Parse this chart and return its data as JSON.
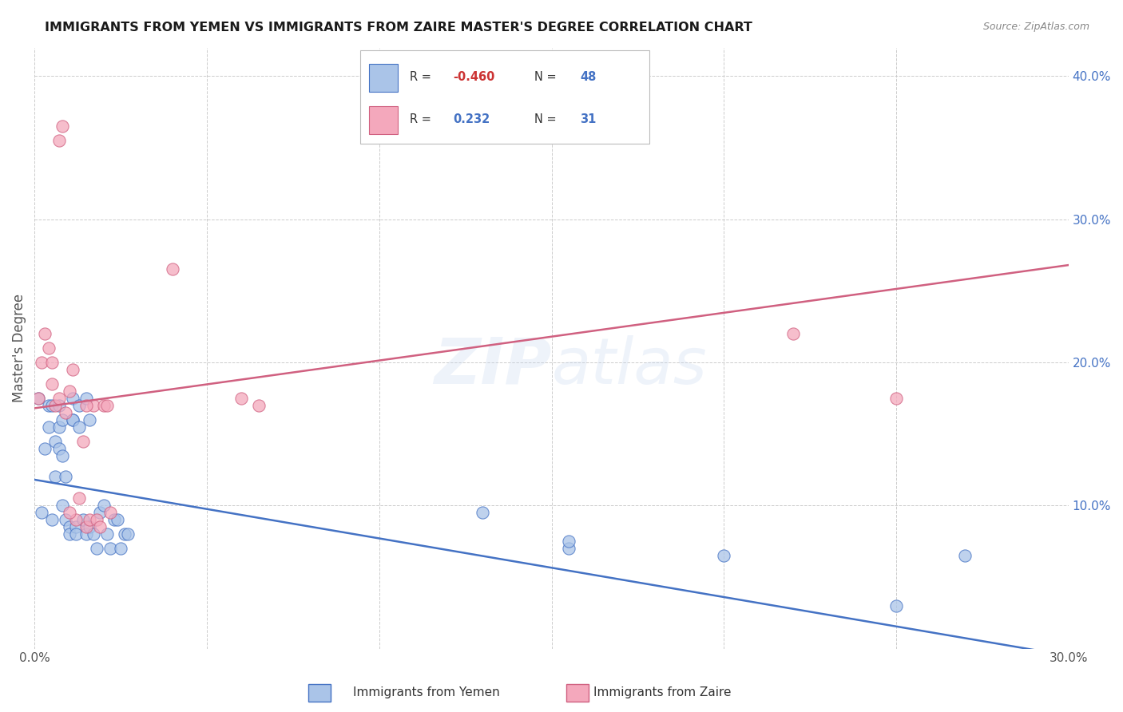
{
  "title": "IMMIGRANTS FROM YEMEN VS IMMIGRANTS FROM ZAIRE MASTER'S DEGREE CORRELATION CHART",
  "source": "Source: ZipAtlas.com",
  "ylabel": "Master's Degree",
  "x_min": 0.0,
  "x_max": 0.3,
  "y_min": 0.0,
  "y_max": 0.42,
  "color_yemen": "#aac4e8",
  "color_zaire": "#f4a8bc",
  "color_line_yemen": "#4472c4",
  "color_line_zaire": "#d06080",
  "watermark": "ZIPatlas",
  "yemen_x": [
    0.001,
    0.002,
    0.003,
    0.004,
    0.004,
    0.005,
    0.005,
    0.006,
    0.006,
    0.007,
    0.007,
    0.007,
    0.008,
    0.008,
    0.008,
    0.009,
    0.009,
    0.01,
    0.01,
    0.011,
    0.011,
    0.011,
    0.012,
    0.012,
    0.013,
    0.013,
    0.014,
    0.015,
    0.015,
    0.016,
    0.016,
    0.017,
    0.018,
    0.019,
    0.02,
    0.021,
    0.022,
    0.023,
    0.024,
    0.025,
    0.026,
    0.027,
    0.13,
    0.155,
    0.155,
    0.2,
    0.25,
    0.27
  ],
  "yemen_y": [
    0.175,
    0.095,
    0.14,
    0.155,
    0.17,
    0.09,
    0.17,
    0.145,
    0.12,
    0.17,
    0.155,
    0.14,
    0.16,
    0.135,
    0.1,
    0.09,
    0.12,
    0.085,
    0.08,
    0.16,
    0.16,
    0.175,
    0.085,
    0.08,
    0.155,
    0.17,
    0.09,
    0.175,
    0.08,
    0.16,
    0.085,
    0.08,
    0.07,
    0.095,
    0.1,
    0.08,
    0.07,
    0.09,
    0.09,
    0.07,
    0.08,
    0.08,
    0.095,
    0.07,
    0.075,
    0.065,
    0.03,
    0.065
  ],
  "zaire_x": [
    0.001,
    0.002,
    0.003,
    0.004,
    0.005,
    0.006,
    0.007,
    0.008,
    0.009,
    0.01,
    0.011,
    0.012,
    0.013,
    0.014,
    0.015,
    0.016,
    0.017,
    0.018,
    0.019,
    0.02,
    0.021,
    0.022,
    0.04,
    0.06,
    0.065,
    0.22,
    0.25,
    0.005,
    0.007,
    0.01,
    0.015
  ],
  "zaire_y": [
    0.175,
    0.2,
    0.22,
    0.21,
    0.185,
    0.17,
    0.355,
    0.365,
    0.165,
    0.18,
    0.195,
    0.09,
    0.105,
    0.145,
    0.085,
    0.09,
    0.17,
    0.09,
    0.085,
    0.17,
    0.17,
    0.095,
    0.265,
    0.175,
    0.17,
    0.22,
    0.175,
    0.2,
    0.175,
    0.095,
    0.17
  ],
  "blue_line_x0": 0.0,
  "blue_line_y0": 0.118,
  "blue_line_x1": 0.3,
  "blue_line_y1": -0.005,
  "pink_line_x0": 0.0,
  "pink_line_y0": 0.168,
  "pink_line_x1": 0.3,
  "pink_line_y1": 0.268
}
